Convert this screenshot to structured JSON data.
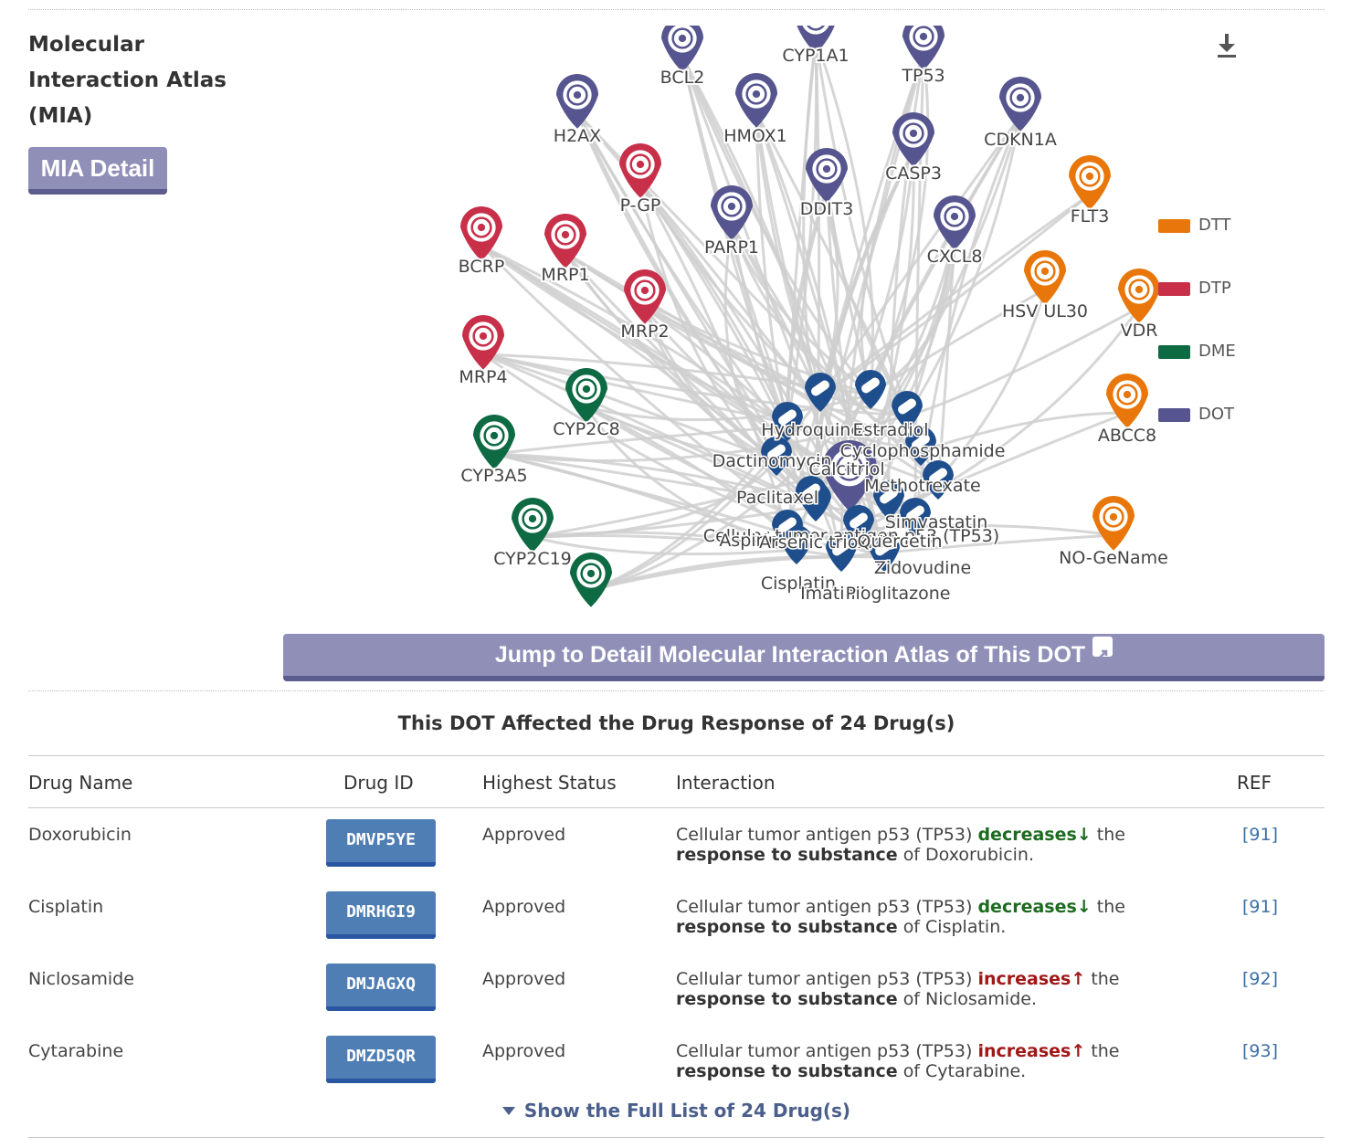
{
  "mia": {
    "title": "Molecular Interaction Atlas (MIA)",
    "detail_button": "MIA Detail",
    "jump_button": "Jump to Detail Molecular Interaction Atlas of This DOT"
  },
  "legend": [
    {
      "label": "DTT",
      "color": "#e8760a"
    },
    {
      "label": "DTP",
      "color": "#c8304a"
    },
    {
      "label": "DME",
      "color": "#0e6a43"
    },
    {
      "label": "DOT",
      "color": "#56558f"
    }
  ],
  "network": {
    "edge_color": "#cfcfcf",
    "center": "TP53",
    "dot_nodes": [
      "CYP1A1",
      "BCL2",
      "TP53",
      "H2AX",
      "HMOX1",
      "CDKN1A",
      "CASP3",
      "DDIT3",
      "PARP1",
      "CXCL8"
    ],
    "dtp_nodes": [
      "P-GP",
      "BCRP",
      "MRP1",
      "MRP2",
      "MRP4"
    ],
    "dme_nodes": [
      "CYP2C8",
      "CYP3A5",
      "CYP2C19"
    ],
    "dtt_nodes": [
      "FLT3",
      "HSV UL30",
      "VDR",
      "ABCC8",
      "NO-GeName"
    ],
    "drug_labels": [
      "Hydroquinone",
      "Estradiol",
      "Cyclophosphamide",
      "Dactinomycin",
      "Calcitriol",
      "Methotrexate",
      "Paclitaxel",
      "Simvastatin",
      "Cellular tumor antigen p53 (TP53)",
      "Aspirin",
      "Arsenic trioxide",
      "Quercetin",
      "Zidovudine",
      "Cisplatin",
      "Imatinib",
      "Pioglitazone"
    ]
  },
  "table": {
    "title": "This DOT Affected the Drug Response of 24 Drug(s)",
    "headers": {
      "name": "Drug Name",
      "id": "Drug ID",
      "status": "Highest Status",
      "interaction": "Interaction",
      "ref": "REF"
    },
    "rows": [
      {
        "name": "Doxorubicin",
        "id": "DMVP5YE",
        "status": "Approved",
        "prefix": "Cellular tumor antigen p53 (TP53)",
        "effect": "decreases",
        "arrow": "↓",
        "mid": "the",
        "bold": "response to substance",
        "suffix": "of Doxorubicin.",
        "ref": "[91]"
      },
      {
        "name": "Cisplatin",
        "id": "DMRHGI9",
        "status": "Approved",
        "prefix": "Cellular tumor antigen p53 (TP53)",
        "effect": "decreases",
        "arrow": "↓",
        "mid": "the",
        "bold": "response to substance",
        "suffix": "of Cisplatin.",
        "ref": "[91]"
      },
      {
        "name": "Niclosamide",
        "id": "DMJAGXQ",
        "status": "Approved",
        "prefix": "Cellular tumor antigen p53 (TP53)",
        "effect": "increases",
        "arrow": "↑",
        "mid": "the",
        "bold": "response to substance",
        "suffix": "of Niclosamide.",
        "ref": "[92]"
      },
      {
        "name": "Cytarabine",
        "id": "DMZD5QR",
        "status": "Approved",
        "prefix": "Cellular tumor antigen p53 (TP53)",
        "effect": "increases",
        "arrow": "↑",
        "mid": "the",
        "bold": "response to substance",
        "suffix": "of Cytarabine.",
        "ref": "[93]"
      }
    ],
    "show_full": "Show the Full List of 24 Drug(s)"
  }
}
